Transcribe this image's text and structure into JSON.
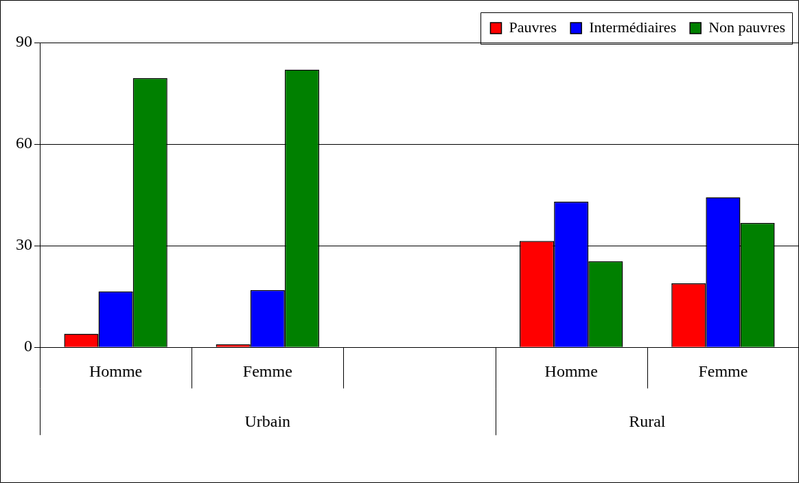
{
  "chart_data": {
    "type": "bar",
    "categories": [
      "Homme",
      "Femme",
      null,
      "Homme",
      "Femme"
    ],
    "series": [
      {
        "name": "Pauvres",
        "color": "#ff0000",
        "values": [
          4.0,
          0.9,
          null,
          31.4,
          18.9
        ]
      },
      {
        "name": "Intermédiaires",
        "color": "#0000ff",
        "values": [
          16.5,
          16.9,
          null,
          43.0,
          44.3
        ]
      },
      {
        "name": "Non pauvres",
        "color": "#008000",
        "values": [
          79.5,
          82.0,
          null,
          25.4,
          36.7
        ]
      }
    ],
    "ylim": [
      0,
      90
    ],
    "yticks": [
      0,
      30,
      60,
      90
    ],
    "grid": "y",
    "legend": "top right",
    "annotations": [
      "Urbain",
      "Rural"
    ]
  }
}
